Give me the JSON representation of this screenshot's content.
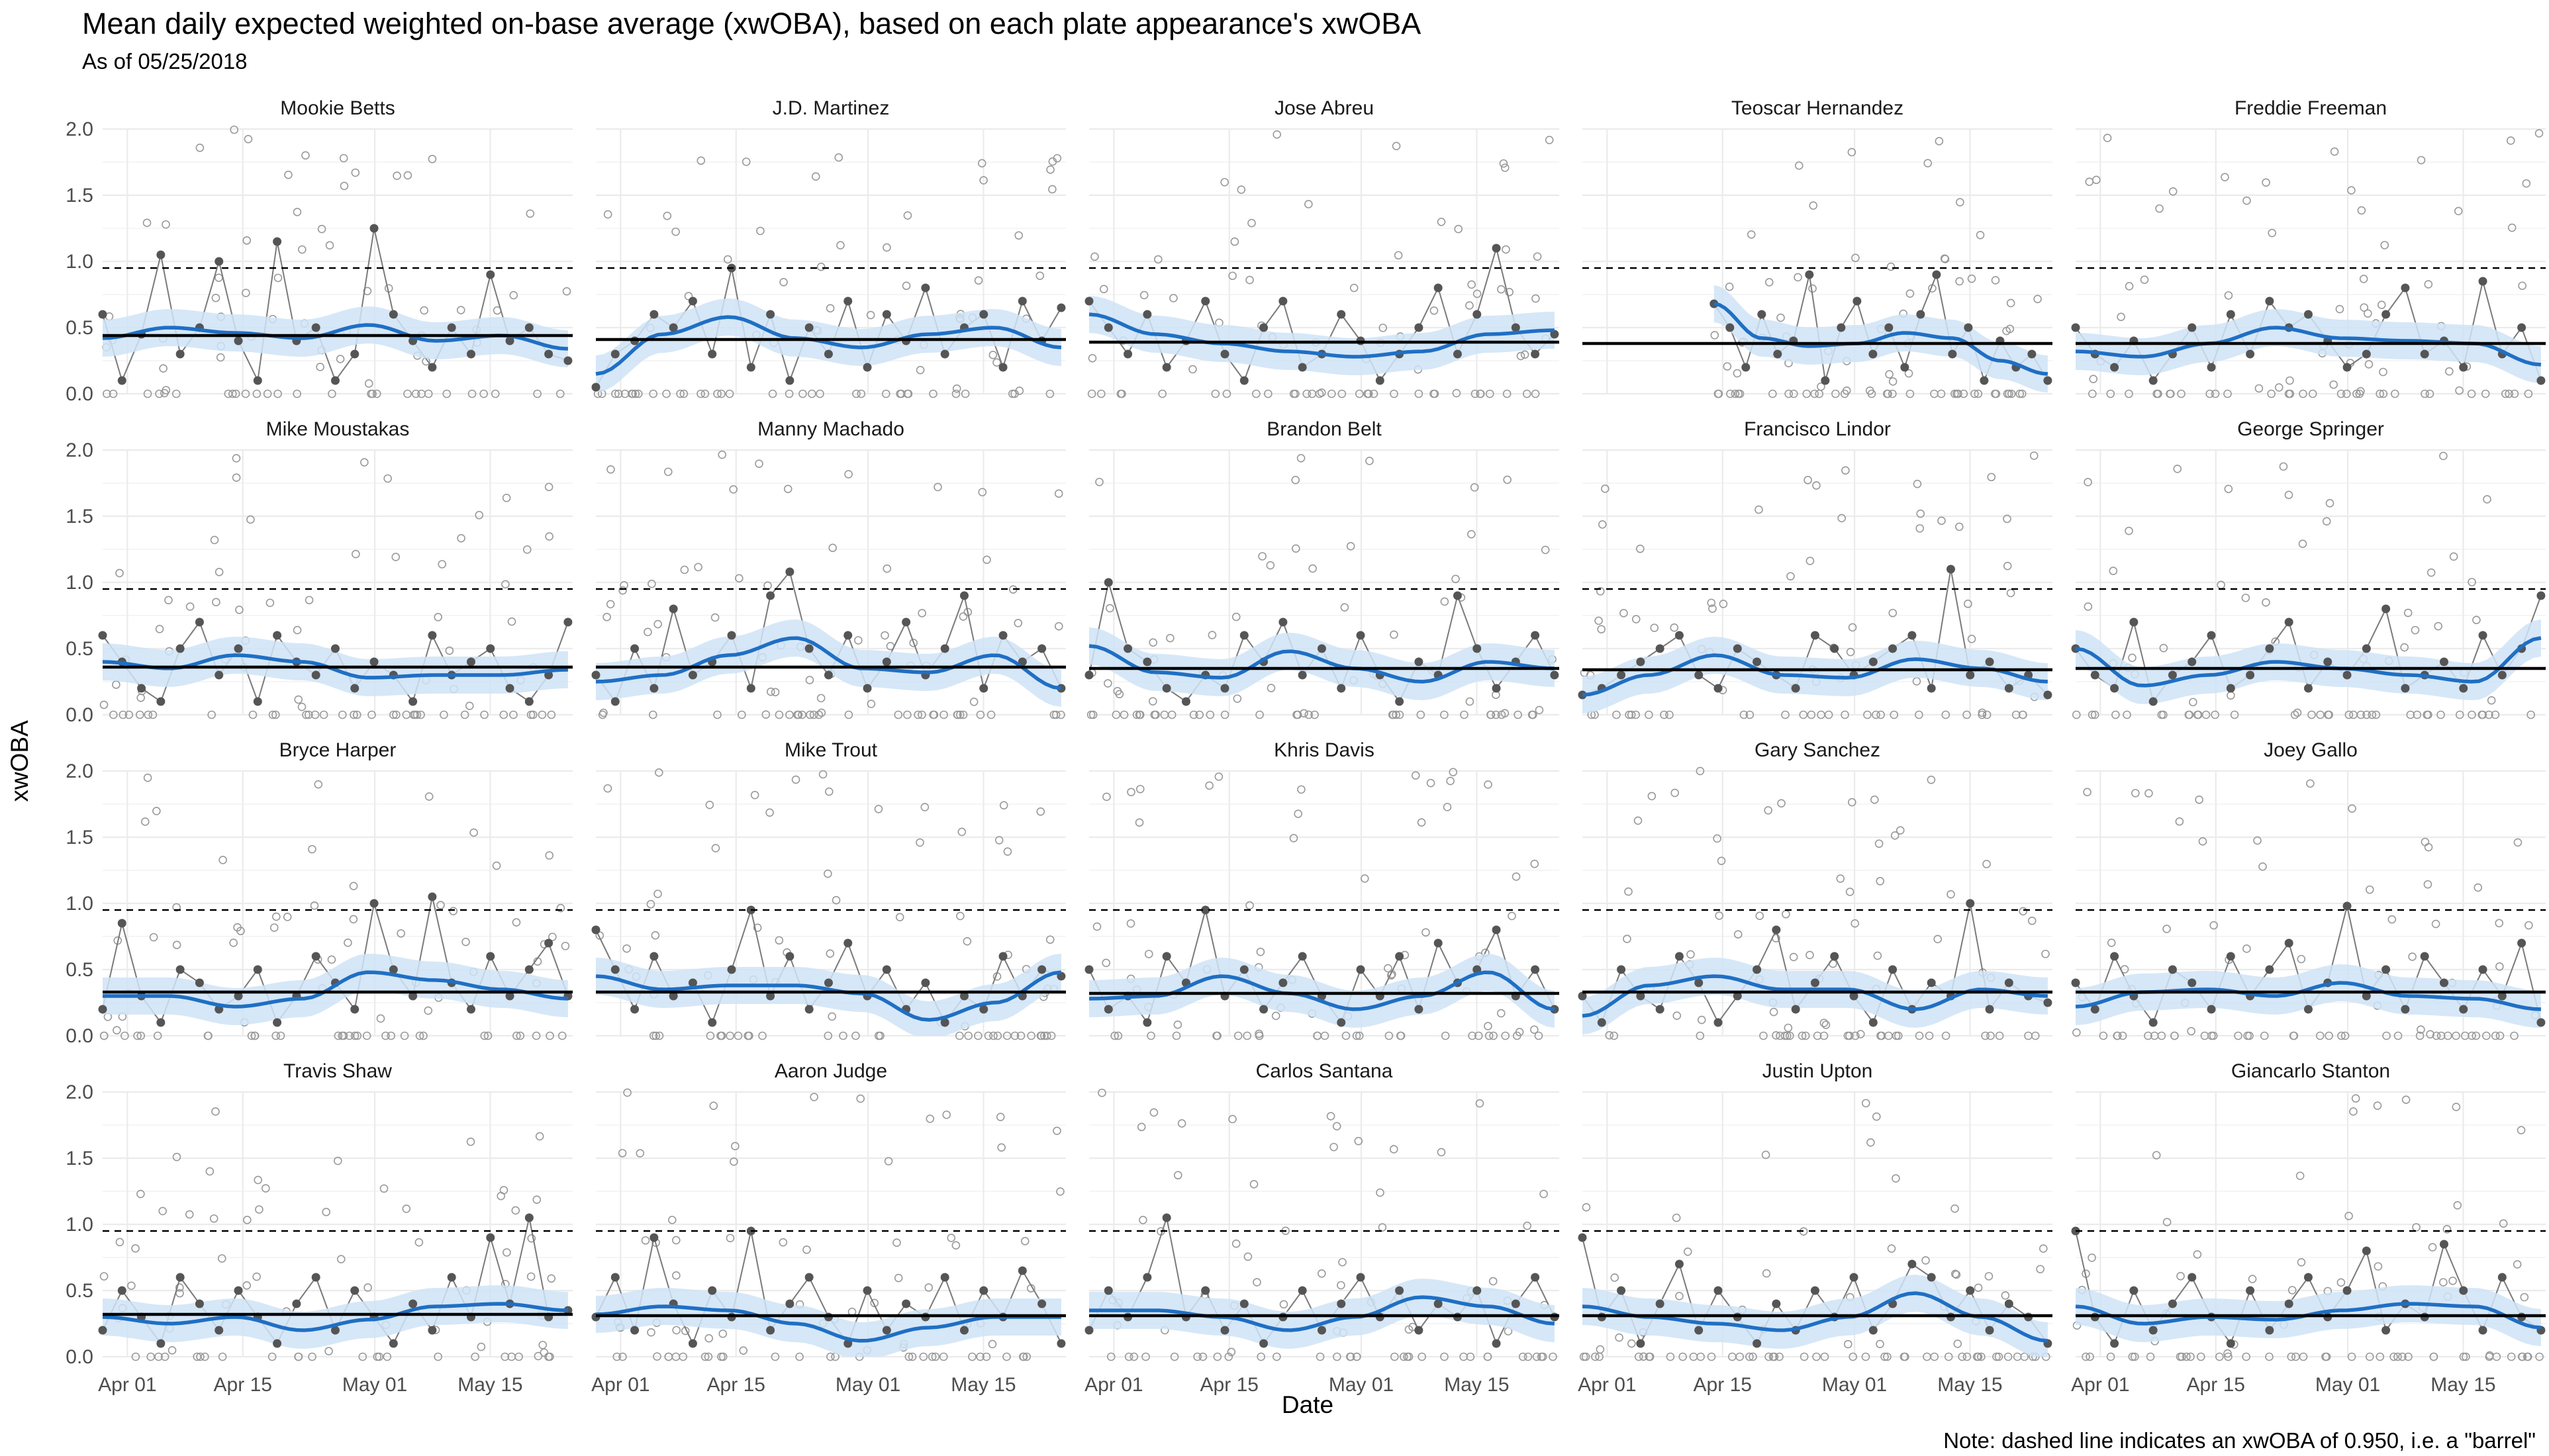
{
  "title": "Mean daily expected weighted on-base average (xwOBA), based on each plate appearance's xwOBA",
  "subtitle": "As of 05/25/2018",
  "note": "Note: dashed line indicates an xwOBA of 0.950, i.e. a \"barrel\"",
  "colors": {
    "smooth": "#1f6fc4",
    "band": "#cfe3f6",
    "daily_points": "#555555",
    "pa_points": "#999999",
    "reference_line": "#000000",
    "grid": "#ebebeb"
  },
  "chart_data": {
    "type": "scatter",
    "layout": "faceted 4x5 small multiples",
    "xlabel": "Date",
    "ylabel": "xwOBA",
    "x_ticks": [
      "Apr 01",
      "Apr 15",
      "May 01",
      "May 15"
    ],
    "y_ticks": [
      "0.0",
      "0.5",
      "1.0",
      "1.5",
      "2.0"
    ],
    "ylim": [
      0,
      2.0
    ],
    "xlim": [
      "2018-03-29",
      "2018-05-25"
    ],
    "barrel_reference": 0.95,
    "grid": true,
    "panels": [
      {
        "name": "Mookie Betts",
        "mean": 0.44,
        "smooth": [
          0.42,
          0.5,
          0.46,
          0.42,
          0.52,
          0.4,
          0.44,
          0.34
        ],
        "daily": [
          0.6,
          0.1,
          0.45,
          1.05,
          0.3,
          0.5,
          1.0,
          0.4,
          0.1,
          1.15,
          0.4,
          0.5,
          0.1,
          0.3,
          1.25,
          0.6,
          0.4,
          0.2,
          0.5,
          0.3,
          0.9,
          0.4,
          0.5,
          0.3,
          0.25
        ]
      },
      {
        "name": "J.D. Martinez",
        "mean": 0.41,
        "smooth": [
          0.15,
          0.45,
          0.58,
          0.42,
          0.35,
          0.45,
          0.5,
          0.35
        ],
        "daily": [
          0.05,
          0.3,
          0.4,
          0.6,
          0.5,
          0.7,
          0.3,
          0.95,
          0.2,
          0.6,
          0.1,
          0.5,
          0.3,
          0.7,
          0.2,
          0.6,
          0.4,
          0.8,
          0.3,
          0.5,
          0.6,
          0.2,
          0.7,
          0.4,
          0.65
        ]
      },
      {
        "name": "Jose Abreu",
        "mean": 0.39,
        "smooth": [
          0.6,
          0.45,
          0.38,
          0.32,
          0.28,
          0.32,
          0.45,
          0.48
        ],
        "daily": [
          0.7,
          0.5,
          0.3,
          0.6,
          0.2,
          0.4,
          0.7,
          0.3,
          0.1,
          0.5,
          0.7,
          0.2,
          0.3,
          0.6,
          0.4,
          0.1,
          0.3,
          0.5,
          0.8,
          0.3,
          0.6,
          1.1,
          0.5,
          0.3,
          0.45
        ]
      },
      {
        "name": "Teoscar Hernandez",
        "mean": 0.38,
        "start": 0.28,
        "smooth": [
          0.68,
          0.42,
          0.36,
          0.38,
          0.46,
          0.42,
          0.25,
          0.15
        ],
        "daily": [
          0.68,
          0.5,
          0.2,
          0.6,
          0.3,
          0.4,
          0.9,
          0.1,
          0.5,
          0.7,
          0.3,
          0.5,
          0.2,
          0.6,
          0.9,
          0.3,
          0.5,
          0.1,
          0.4,
          0.2,
          0.3,
          0.1
        ]
      },
      {
        "name": "Freddie Freeman",
        "mean": 0.38,
        "smooth": [
          0.32,
          0.28,
          0.38,
          0.5,
          0.42,
          0.4,
          0.38,
          0.22
        ],
        "daily": [
          0.5,
          0.3,
          0.2,
          0.4,
          0.1,
          0.3,
          0.5,
          0.2,
          0.6,
          0.3,
          0.7,
          0.5,
          0.6,
          0.4,
          0.2,
          0.3,
          0.6,
          0.8,
          0.3,
          0.4,
          0.2,
          0.85,
          0.3,
          0.5,
          0.1
        ]
      },
      {
        "name": "Mike Moustakas",
        "mean": 0.36,
        "smooth": [
          0.4,
          0.35,
          0.45,
          0.4,
          0.28,
          0.3,
          0.3,
          0.34
        ],
        "daily": [
          0.6,
          0.4,
          0.2,
          0.1,
          0.5,
          0.7,
          0.3,
          0.5,
          0.1,
          0.6,
          0.4,
          0.3,
          0.5,
          0.2,
          0.4,
          0.3,
          0.1,
          0.6,
          0.3,
          0.4,
          0.5,
          0.2,
          0.1,
          0.3,
          0.7
        ]
      },
      {
        "name": "Manny Machado",
        "mean": 0.36,
        "smooth": [
          0.25,
          0.3,
          0.45,
          0.58,
          0.35,
          0.32,
          0.45,
          0.2
        ],
        "daily": [
          0.3,
          0.1,
          0.5,
          0.2,
          0.8,
          0.3,
          0.4,
          0.6,
          0.2,
          0.9,
          1.08,
          0.5,
          0.3,
          0.6,
          0.2,
          0.4,
          0.7,
          0.3,
          0.5,
          0.9,
          0.2,
          0.6,
          0.4,
          0.5,
          0.2
        ]
      },
      {
        "name": "Brandon Belt",
        "mean": 0.35,
        "smooth": [
          0.52,
          0.32,
          0.28,
          0.48,
          0.35,
          0.25,
          0.4,
          0.35
        ],
        "daily": [
          0.3,
          1.0,
          0.5,
          0.4,
          0.2,
          0.1,
          0.3,
          0.2,
          0.6,
          0.4,
          0.7,
          0.3,
          0.5,
          0.2,
          0.6,
          0.3,
          0.1,
          0.4,
          0.3,
          0.9,
          0.5,
          0.2,
          0.4,
          0.6,
          0.3
        ]
      },
      {
        "name": "Francisco Lindor",
        "mean": 0.34,
        "smooth": [
          0.15,
          0.3,
          0.45,
          0.3,
          0.28,
          0.42,
          0.35,
          0.25
        ],
        "daily": [
          0.15,
          0.2,
          0.3,
          0.4,
          0.5,
          0.6,
          0.3,
          0.2,
          0.5,
          0.4,
          0.3,
          0.2,
          0.6,
          0.5,
          0.3,
          0.4,
          0.5,
          0.6,
          0.2,
          1.1,
          0.3,
          0.4,
          0.2,
          0.3,
          0.15
        ]
      },
      {
        "name": "George Springer",
        "mean": 0.35,
        "smooth": [
          0.5,
          0.22,
          0.3,
          0.4,
          0.35,
          0.3,
          0.25,
          0.58
        ],
        "daily": [
          0.5,
          0.3,
          0.2,
          0.7,
          0.1,
          0.3,
          0.4,
          0.6,
          0.2,
          0.3,
          0.5,
          0.7,
          0.2,
          0.4,
          0.3,
          0.5,
          0.8,
          0.2,
          0.3,
          0.4,
          0.2,
          0.6,
          0.3,
          0.5,
          0.9
        ]
      },
      {
        "name": "Bryce Harper",
        "mean": 0.33,
        "smooth": [
          0.3,
          0.3,
          0.22,
          0.28,
          0.48,
          0.42,
          0.35,
          0.28
        ],
        "daily": [
          0.2,
          0.85,
          0.3,
          0.1,
          0.5,
          0.4,
          0.2,
          0.3,
          0.5,
          0.1,
          0.3,
          0.6,
          0.4,
          0.2,
          1.0,
          0.5,
          0.3,
          1.05,
          0.4,
          0.2,
          0.6,
          0.3,
          0.5,
          0.7,
          0.3
        ]
      },
      {
        "name": "Mike Trout",
        "mean": 0.33,
        "smooth": [
          0.45,
          0.35,
          0.38,
          0.38,
          0.32,
          0.12,
          0.25,
          0.48
        ],
        "daily": [
          0.8,
          0.5,
          0.2,
          0.6,
          0.3,
          0.4,
          0.1,
          0.5,
          0.95,
          0.3,
          0.6,
          0.2,
          0.4,
          0.7,
          0.3,
          0.5,
          0.2,
          0.4,
          0.1,
          0.3,
          0.2,
          0.6,
          0.3,
          0.5,
          0.45
        ]
      },
      {
        "name": "Khris Davis",
        "mean": 0.32,
        "smooth": [
          0.28,
          0.3,
          0.45,
          0.32,
          0.2,
          0.3,
          0.48,
          0.2
        ],
        "daily": [
          0.5,
          0.2,
          0.3,
          0.1,
          0.6,
          0.4,
          0.95,
          0.3,
          0.5,
          0.2,
          0.4,
          0.6,
          0.3,
          0.1,
          0.5,
          0.3,
          0.6,
          0.2,
          0.7,
          0.4,
          0.5,
          0.8,
          0.3,
          0.5,
          0.2
        ]
      },
      {
        "name": "Gary Sanchez",
        "mean": 0.33,
        "smooth": [
          0.15,
          0.38,
          0.45,
          0.35,
          0.35,
          0.2,
          0.35,
          0.3
        ],
        "daily": [
          0.3,
          0.1,
          0.5,
          0.3,
          0.2,
          0.6,
          0.4,
          0.1,
          0.3,
          0.5,
          0.8,
          0.2,
          0.4,
          0.6,
          0.3,
          0.1,
          0.5,
          0.2,
          0.4,
          0.3,
          1.0,
          0.2,
          0.4,
          0.3,
          0.25
        ]
      },
      {
        "name": "Joey Gallo",
        "mean": 0.33,
        "smooth": [
          0.22,
          0.33,
          0.35,
          0.3,
          0.4,
          0.3,
          0.28,
          0.2
        ],
        "daily": [
          0.4,
          0.2,
          0.6,
          0.3,
          0.1,
          0.5,
          0.4,
          0.2,
          0.6,
          0.3,
          0.5,
          0.7,
          0.2,
          0.4,
          0.98,
          0.3,
          0.5,
          0.2,
          0.6,
          0.4,
          0.2,
          0.5,
          0.3,
          0.7,
          0.1
        ]
      },
      {
        "name": "Travis Shaw",
        "mean": 0.32,
        "smooth": [
          0.3,
          0.25,
          0.3,
          0.2,
          0.28,
          0.38,
          0.4,
          0.35
        ],
        "daily": [
          0.2,
          0.5,
          0.3,
          0.1,
          0.6,
          0.4,
          0.2,
          0.5,
          0.3,
          0.1,
          0.4,
          0.6,
          0.2,
          0.5,
          0.3,
          0.1,
          0.4,
          0.2,
          0.6,
          0.3,
          0.9,
          0.4,
          1.05,
          0.3,
          0.35
        ]
      },
      {
        "name": "Aaron Judge",
        "mean": 0.31,
        "smooth": [
          0.32,
          0.38,
          0.35,
          0.25,
          0.12,
          0.22,
          0.3,
          0.3
        ],
        "daily": [
          0.3,
          0.6,
          0.2,
          0.9,
          0.4,
          0.1,
          0.5,
          0.3,
          0.95,
          0.2,
          0.4,
          0.6,
          0.3,
          0.1,
          0.5,
          0.2,
          0.4,
          0.3,
          0.6,
          0.2,
          0.5,
          0.3,
          0.65,
          0.4,
          0.1
        ]
      },
      {
        "name": "Carlos Santana",
        "mean": 0.31,
        "smooth": [
          0.35,
          0.35,
          0.3,
          0.2,
          0.3,
          0.45,
          0.38,
          0.25
        ],
        "daily": [
          0.2,
          0.5,
          0.3,
          0.6,
          1.05,
          0.3,
          0.5,
          0.2,
          0.4,
          0.1,
          0.3,
          0.5,
          0.2,
          0.4,
          0.6,
          0.3,
          0.5,
          0.2,
          0.4,
          0.3,
          0.5,
          0.1,
          0.4,
          0.6,
          0.3
        ]
      },
      {
        "name": "Justin Upton",
        "mean": 0.31,
        "smooth": [
          0.38,
          0.3,
          0.25,
          0.2,
          0.3,
          0.48,
          0.3,
          0.12
        ],
        "daily": [
          0.9,
          0.3,
          0.5,
          0.1,
          0.4,
          0.7,
          0.2,
          0.5,
          0.3,
          0.1,
          0.4,
          0.2,
          0.5,
          0.3,
          0.6,
          0.2,
          0.4,
          0.7,
          0.6,
          0.3,
          0.5,
          0.2,
          0.4,
          0.3,
          0.1
        ]
      },
      {
        "name": "Giancarlo Stanton",
        "mean": 0.31,
        "smooth": [
          0.38,
          0.25,
          0.3,
          0.28,
          0.35,
          0.4,
          0.38,
          0.22
        ],
        "daily": [
          0.95,
          0.3,
          0.1,
          0.5,
          0.2,
          0.4,
          0.6,
          0.3,
          0.1,
          0.5,
          0.2,
          0.4,
          0.6,
          0.3,
          0.5,
          0.8,
          0.2,
          0.4,
          0.3,
          0.85,
          0.5,
          0.2,
          0.6,
          0.3,
          0.2
        ]
      }
    ]
  }
}
